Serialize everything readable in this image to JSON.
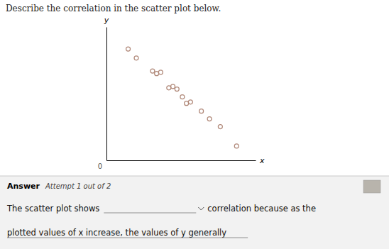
{
  "chart_data": {
    "type": "scatter",
    "title": "Describe the correlation in the scatter plot below.",
    "x": [
      0.3,
      0.6,
      1.2,
      1.35,
      1.5,
      1.8,
      1.95,
      2.1,
      2.3,
      2.45,
      2.6,
      3.0,
      3.3,
      3.7,
      4.3
    ],
    "values": [
      7.8,
      7.1,
      6.1,
      5.9,
      6.0,
      4.8,
      4.9,
      4.7,
      4.1,
      3.6,
      3.7,
      3.0,
      2.4,
      1.8,
      0.3
    ],
    "color": "#b08878",
    "marker": "circle-open",
    "xlabel": "x",
    "ylabel": "y",
    "xlim": [
      -0.5,
      5.0
    ],
    "ylim": [
      -0.8,
      9.5
    ],
    "tick_labels": false,
    "grid": false,
    "annotations": [
      "0",
      "Answer",
      "Attempt 1 out of 2",
      "The scatter plot shows",
      "correlation because as the",
      "plotted values of x increase, the values of y generally"
    ]
  }
}
